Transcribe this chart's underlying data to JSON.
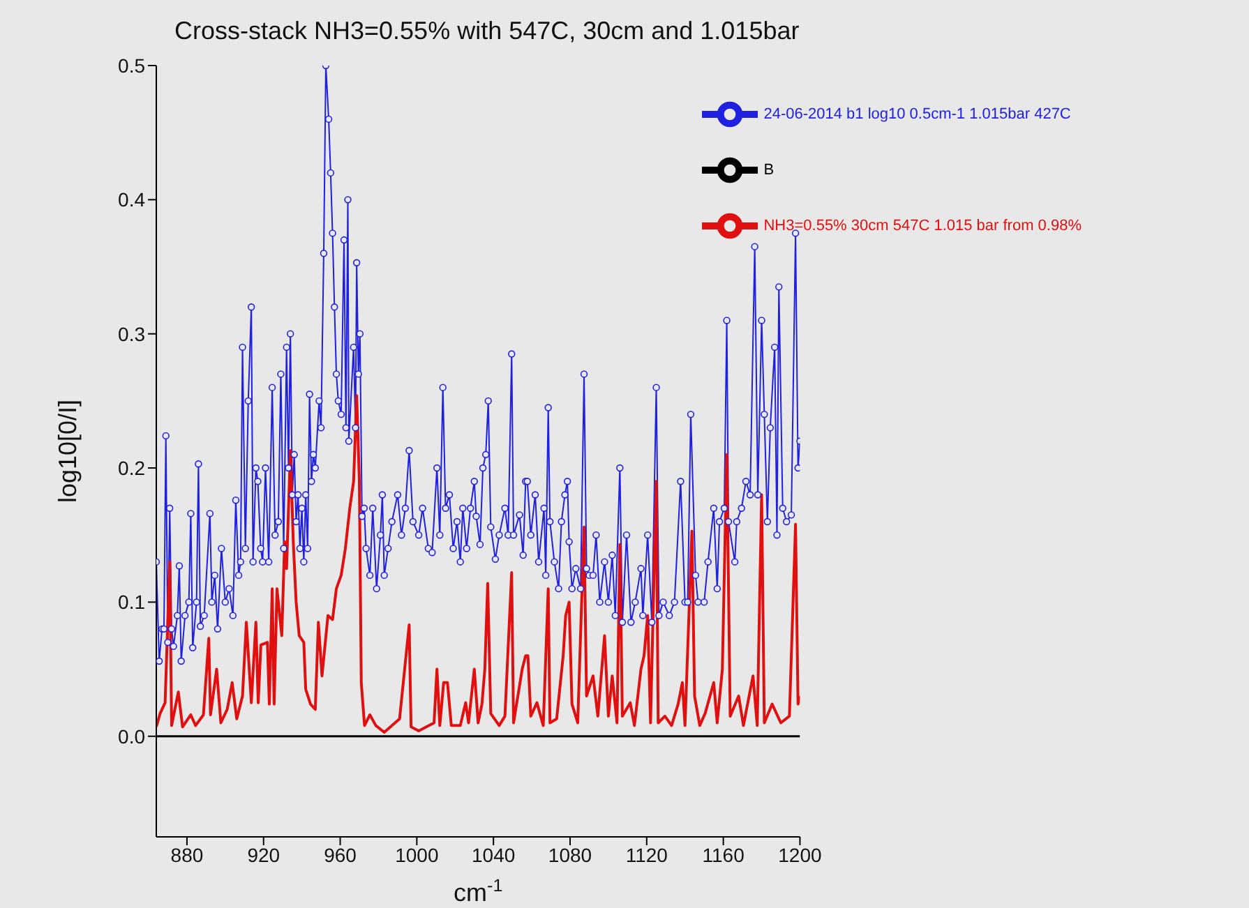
{
  "chart_data": {
    "type": "line",
    "title": "Cross-stack NH3=0.55% with 547C, 30cm and 1.015bar",
    "xlabel": "cm$^{-1}$",
    "ylabel": "log10[0/I]",
    "xlim": [
      864,
      1200
    ],
    "xticks": [
      880,
      920,
      960,
      1000,
      1040,
      1080,
      1120,
      1160,
      1200
    ],
    "ylim": [
      -0.075,
      0.5
    ],
    "yticks": [
      {
        "value": 0,
        "label": "0.0"
      },
      {
        "value": 0.1,
        "label": "0.1"
      },
      {
        "value": 0.2,
        "label": "0.2"
      },
      {
        "value": 0.3,
        "label": "0.3"
      },
      {
        "value": 0.4,
        "label": "0.4"
      },
      {
        "value": 0.5,
        "label": "0.5"
      }
    ],
    "legend": "top right",
    "series": [
      {
        "name": "24-06-2014 b1 log10 0.5cm-1 1.015bar 427C",
        "color": "#2020e0",
        "marker": "circle",
        "x": [
          864,
          865.5,
          867,
          868,
          869,
          870,
          871,
          872,
          873,
          875,
          876,
          877,
          879,
          881,
          882,
          883,
          885,
          886,
          887,
          889,
          892,
          893,
          894.5,
          896,
          898,
          900,
          902,
          904,
          905.5,
          907,
          908,
          909,
          910.5,
          912,
          913.6,
          914.5,
          916,
          917,
          918.5,
          919.5,
          921,
          922.7,
          924.5,
          926,
          927.7,
          929,
          930.5,
          932,
          933,
          934,
          935,
          936,
          937,
          938,
          939,
          940,
          941,
          942,
          943,
          944,
          945,
          946,
          947,
          949,
          950,
          951.4,
          952.5,
          954,
          955,
          956,
          957,
          958,
          959,
          960.5,
          962,
          963,
          964,
          964.5,
          967,
          968,
          968.6,
          969.5,
          970.3,
          971.4,
          972.5,
          973.5,
          975.5,
          977,
          979,
          981,
          982,
          983,
          985,
          987,
          990,
          992,
          994,
          996,
          998,
          1001,
          1003,
          1006,
          1008,
          1010.5,
          1012,
          1013.6,
          1015,
          1017,
          1019,
          1021,
          1022.7,
          1024,
          1026,
          1028,
          1030,
          1031,
          1033,
          1034.5,
          1036,
          1037.3,
          1038.6,
          1041,
          1043,
          1046,
          1047.7,
          1049.5,
          1050.5,
          1053.6,
          1055.5,
          1056.8,
          1057.7,
          1059.5,
          1061.8,
          1063.6,
          1066.4,
          1067.3,
          1068.6,
          1069.5,
          1071.8,
          1074,
          1075.5,
          1077.3,
          1078.6,
          1079.5,
          1081,
          1083,
          1085.5,
          1087.3,
          1088.6,
          1090,
          1092,
          1093.6,
          1095.5,
          1098,
          1100,
          1102,
          1103.6,
          1106,
          1107.3,
          1109.5,
          1111.8,
          1114,
          1117,
          1118,
          1120.5,
          1122.7,
          1125,
          1126.4,
          1128.6,
          1131.8,
          1134.5,
          1137.7,
          1140,
          1141.4,
          1143,
          1145.5,
          1146.8,
          1150,
          1152,
          1155,
          1156.8,
          1158,
          1160.5,
          1161.8,
          1162.7,
          1166,
          1167,
          1169.5,
          1171.8,
          1174,
          1176.4,
          1178,
          1180,
          1181.4,
          1183,
          1184.5,
          1186.8,
          1188,
          1189,
          1191,
          1193,
          1195.5,
          1197.7,
          1199,
          1200
        ],
        "values": [
          0.13,
          0.056,
          0.08,
          0.08,
          0.224,
          0.07,
          0.17,
          0.08,
          0.067,
          0.09,
          0.127,
          0.056,
          0.09,
          0.1,
          0.166,
          0.066,
          0.1,
          0.203,
          0.082,
          0.09,
          0.166,
          0.1,
          0.12,
          0.08,
          0.14,
          0.1,
          0.11,
          0.09,
          0.176,
          0.12,
          0.13,
          0.29,
          0.14,
          0.25,
          0.32,
          0.13,
          0.2,
          0.19,
          0.14,
          0.13,
          0.2,
          0.13,
          0.26,
          0.15,
          0.16,
          0.27,
          0.14,
          0.29,
          0.2,
          0.3,
          0.18,
          0.21,
          0.16,
          0.18,
          0.14,
          0.17,
          0.13,
          0.18,
          0.14,
          0.255,
          0.19,
          0.21,
          0.2,
          0.25,
          0.23,
          0.36,
          0.5,
          0.46,
          0.42,
          0.375,
          0.32,
          0.27,
          0.25,
          0.24,
          0.37,
          0.23,
          0.4,
          0.22,
          0.29,
          0.23,
          0.353,
          0.27,
          0.3,
          0.164,
          0.17,
          0.14,
          0.12,
          0.17,
          0.11,
          0.15,
          0.18,
          0.12,
          0.14,
          0.16,
          0.18,
          0.15,
          0.17,
          0.213,
          0.16,
          0.15,
          0.17,
          0.14,
          0.137,
          0.2,
          0.15,
          0.26,
          0.17,
          0.18,
          0.14,
          0.16,
          0.13,
          0.17,
          0.14,
          0.17,
          0.19,
          0.164,
          0.143,
          0.2,
          0.21,
          0.25,
          0.156,
          0.132,
          0.15,
          0.17,
          0.15,
          0.285,
          0.15,
          0.165,
          0.135,
          0.19,
          0.19,
          0.15,
          0.18,
          0.13,
          0.17,
          0.12,
          0.245,
          0.16,
          0.13,
          0.11,
          0.16,
          0.18,
          0.19,
          0.145,
          0.11,
          0.125,
          0.11,
          0.27,
          0.125,
          0.12,
          0.12,
          0.15,
          0.1,
          0.13,
          0.1,
          0.135,
          0.09,
          0.2,
          0.085,
          0.15,
          0.085,
          0.1,
          0.125,
          0.09,
          0.15,
          0.085,
          0.26,
          0.09,
          0.1,
          0.09,
          0.1,
          0.19,
          0.1,
          0.1,
          0.24,
          0.12,
          0.1,
          0.1,
          0.13,
          0.17,
          0.11,
          0.16,
          0.17,
          0.31,
          0.16,
          0.13,
          0.16,
          0.17,
          0.19,
          0.18,
          0.365,
          0.18,
          0.31,
          0.24,
          0.16,
          0.23,
          0.29,
          0.15,
          0.335,
          0.17,
          0.16,
          0.165,
          0.375,
          0.2,
          0.22
        ]
      },
      {
        "name": "B",
        "color": "#000000",
        "marker": "none",
        "x": [
          864,
          1200
        ],
        "values": [
          0,
          0
        ]
      },
      {
        "name": "NH3=0.55% 30cm 547C 1.015 bar from 0.98%",
        "color": "#e01010",
        "marker": "none",
        "x": [
          864,
          866,
          868.6,
          871,
          872,
          875.5,
          877.7,
          882,
          884.5,
          888.6,
          891.4,
          892.3,
          895.5,
          897.7,
          901,
          903.6,
          906,
          909,
          911,
          913.6,
          916,
          917.2,
          918.6,
          922,
          923,
          924.5,
          925.5,
          927,
          929.5,
          931,
          932,
          934,
          935.5,
          937,
          938.6,
          941,
          942,
          944.5,
          947,
          948.6,
          950.5,
          953.6,
          956,
          958,
          960.5,
          962.7,
          965,
          967,
          968.6,
          970,
          971,
          972.7,
          975.5,
          978.6,
          983,
          991,
          996,
          997,
          1001,
          1009,
          1010.5,
          1012,
          1014,
          1016,
          1018,
          1022.7,
          1025.5,
          1027,
          1030,
          1032,
          1034,
          1035.5,
          1037,
          1038.6,
          1043,
          1046,
          1049.5,
          1050.5,
          1055,
          1056.8,
          1058,
          1059.5,
          1062.7,
          1066,
          1068.6,
          1069.5,
          1073,
          1076.4,
          1077.7,
          1079.5,
          1081,
          1084,
          1087.3,
          1088.6,
          1092,
          1094.5,
          1098,
          1100,
          1102,
          1104.5,
          1106,
          1107.3,
          1111.4,
          1113.6,
          1117,
          1118.6,
          1120.5,
          1122,
          1125,
          1126,
          1129.5,
          1133,
          1136.4,
          1138.6,
          1140,
          1143.6,
          1145,
          1147.7,
          1150.5,
          1155,
          1156.8,
          1159.5,
          1161.8,
          1163.6,
          1168,
          1170.5,
          1175.5,
          1177.7,
          1180,
          1181.4,
          1185.5,
          1190,
          1194.5,
          1197.7,
          1199,
          1200
        ],
        "values": [
          0.007,
          0.017,
          0.025,
          0.13,
          0.008,
          0.033,
          0.007,
          0.016,
          0.008,
          0.016,
          0.073,
          0.016,
          0.05,
          0.01,
          0.02,
          0.04,
          0.013,
          0.03,
          0.085,
          0.025,
          0.085,
          0.025,
          0.068,
          0.07,
          0.024,
          0.11,
          0.024,
          0.11,
          0.075,
          0.145,
          0.125,
          0.213,
          0.145,
          0.1,
          0.075,
          0.07,
          0.035,
          0.024,
          0.02,
          0.085,
          0.045,
          0.09,
          0.087,
          0.11,
          0.12,
          0.14,
          0.17,
          0.19,
          0.254,
          0.19,
          0.04,
          0.008,
          0.016,
          0.008,
          0.003,
          0.013,
          0.083,
          0.007,
          0.004,
          0.01,
          0.05,
          0.008,
          0.04,
          0.04,
          0.008,
          0.008,
          0.025,
          0.01,
          0.05,
          0.01,
          0.024,
          0.05,
          0.114,
          0.017,
          0.008,
          0.015,
          0.122,
          0.01,
          0.05,
          0.06,
          0.06,
          0.015,
          0.025,
          0.008,
          0.11,
          0.01,
          0.013,
          0.06,
          0.09,
          0.1,
          0.024,
          0.01,
          0.156,
          0.03,
          0.045,
          0.015,
          0.075,
          0.015,
          0.045,
          0.01,
          0.143,
          0.015,
          0.025,
          0.008,
          0.05,
          0.06,
          0.09,
          0.01,
          0.19,
          0.01,
          0.015,
          0.008,
          0.024,
          0.04,
          0.008,
          0.153,
          0.03,
          0.008,
          0.017,
          0.04,
          0.01,
          0.05,
          0.21,
          0.015,
          0.03,
          0.008,
          0.045,
          0.008,
          0.18,
          0.01,
          0.024,
          0.01,
          0.015,
          0.158,
          0.024,
          0.03
        ]
      }
    ]
  }
}
